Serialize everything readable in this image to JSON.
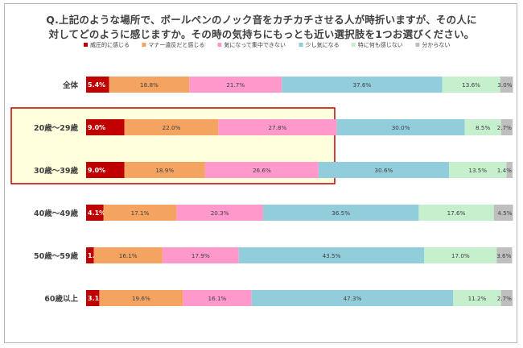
{
  "chart_data": {
    "type": "bar",
    "stacked": true,
    "orientation": "horizontal",
    "title_lines": [
      "Q.上記のような場所で、ボールペンのノック音をカチカチさせる人が時折いますが、その人に",
      "対してどのように感じますか。その時の気持ちにもっとも近い選択肢を1つお選びください。"
    ],
    "categories": [
      "全体",
      "20歳～29歳",
      "30歳～39歳",
      "40歳～49歳",
      "50歳～59歳",
      "60歳以上"
    ],
    "series": [
      {
        "name": "威圧的に感じる",
        "color": "#c00000",
        "values": [
          5.4,
          9.0,
          9.0,
          4.1,
          1.8,
          3.1
        ]
      },
      {
        "name": "マナー違反だと感じる",
        "color": "#f4a460",
        "values": [
          18.8,
          22.0,
          18.9,
          17.1,
          16.1,
          19.6
        ]
      },
      {
        "name": "気になって集中できない",
        "color": "#ff99cc",
        "values": [
          21.7,
          27.8,
          26.6,
          20.3,
          17.9,
          16.1
        ]
      },
      {
        "name": "少し気になる",
        "color": "#92cddc",
        "values": [
          37.6,
          30.0,
          30.6,
          36.5,
          43.5,
          47.3
        ]
      },
      {
        "name": "特に何も感じない",
        "color": "#c6efce",
        "values": [
          13.6,
          8.5,
          13.5,
          17.6,
          17.0,
          11.2
        ]
      },
      {
        "name": "分からない",
        "color": "#bfbfbf",
        "values": [
          3.0,
          2.7,
          1.4,
          4.5,
          3.6,
          2.7
        ]
      }
    ],
    "labels": [
      [
        "5.4%",
        "18.8%",
        "21.7%",
        "37.6%",
        "13.6%",
        "3.0%"
      ],
      [
        "9.0%",
        "22.0%",
        "27.8%",
        "30.0%",
        "8.5%",
        "2.7%"
      ],
      [
        "9.0%",
        "18.9%",
        "26.6%",
        "30.6%",
        "13.5%",
        "1.4%"
      ],
      [
        "4.1%",
        "17.1%",
        "20.3%",
        "36.5%",
        "17.6%",
        "4.5%"
      ],
      [
        "1.8%",
        "16.1%",
        "17.9%",
        "43.5%",
        "17.0%",
        "3.6%"
      ],
      [
        "3.1%",
        "19.6%",
        "16.1%",
        "47.3%",
        "11.2%",
        "2.7%"
      ]
    ],
    "xlim": [
      0,
      100
    ],
    "legend_position": "top",
    "highlight_categories": [
      "20歳～29歳",
      "30歳～39歳"
    ],
    "highlight_fill": "#ffffdd",
    "highlight_border": "#c00000"
  }
}
